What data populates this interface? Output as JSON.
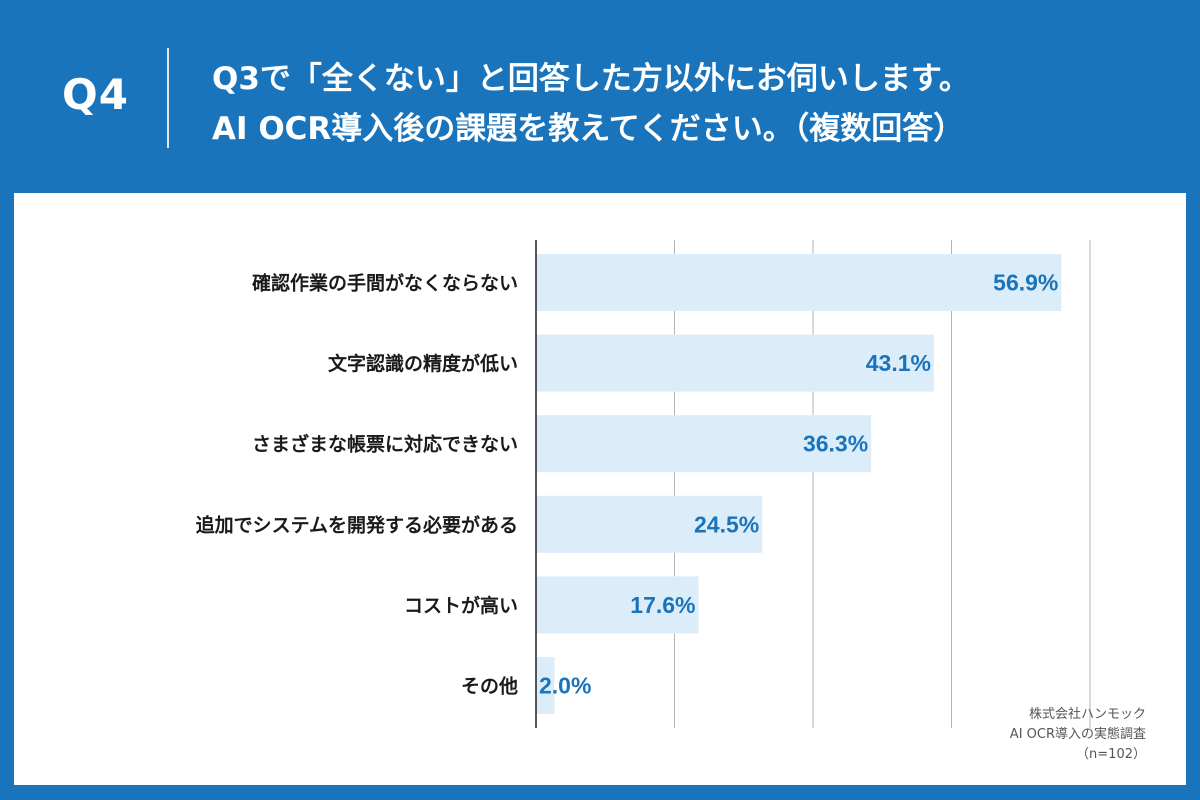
{
  "header": {
    "question_number": "Q4",
    "title_line1": "Q3で「全くない」と回答した方以外にお伺いします。",
    "title_line2": "AI OCR導入後の課題を教えてください。（複数回答）"
  },
  "colors": {
    "background": "#1a74bb",
    "bar_fill": "#dcedfa",
    "value_text": "#1a74bb",
    "gridline": "#b5b5b5",
    "axis": "#222222"
  },
  "source": {
    "company": "株式会社ハンモック",
    "survey": "AI OCR導入の実態調査",
    "sample": "（n=102）"
  },
  "chart_data": {
    "type": "bar",
    "orientation": "horizontal",
    "categories": [
      "確認作業の手間がなくならない",
      "文字認識の精度が低い",
      "さまざまな帳票に対応できない",
      "追加でシステムを開発する必要がある",
      "コストが高い",
      "その他"
    ],
    "values": [
      56.9,
      43.1,
      36.3,
      24.5,
      17.6,
      2.0
    ],
    "value_labels": [
      "56.9%",
      "43.1%",
      "36.3%",
      "24.5%",
      "17.6%",
      "2.0%"
    ],
    "unit": "%",
    "xlim": [
      0,
      60
    ],
    "grid_step": 15,
    "grid": true,
    "title": "",
    "xlabel": "",
    "ylabel": ""
  }
}
